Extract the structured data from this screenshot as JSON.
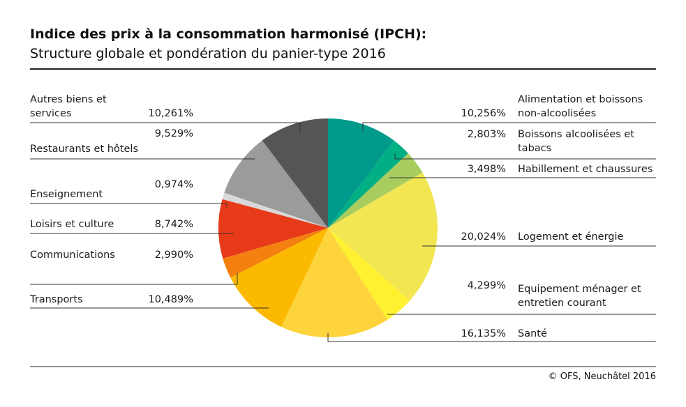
{
  "chart_data": {
    "type": "pie",
    "title": "Indice des prix à la consommation harmonisé (IPCH):",
    "subtitle": "Structure globale et pondération du panier-type 2016",
    "categories": [
      "Alimentation et boissons non-alcoolisées",
      "Boissons alcoolisées et tabacs",
      "Habillement et chaussures",
      "Logement et énergie",
      "Equipement ménager et entretien courant",
      "Santé",
      "Transports",
      "Communications",
      "Loisirs et culture",
      "Enseignement",
      "Restaurants et hôtels",
      "Autres biens et services"
    ],
    "values": [
      10.256,
      2.803,
      3.498,
      20.024,
      4.299,
      16.135,
      10.489,
      2.99,
      8.742,
      0.974,
      9.529,
      10.261
    ],
    "value_labels": [
      "10,256%",
      "2,803%",
      "3,498%",
      "20,024%",
      "4,299%",
      "16,135%",
      "10,489%",
      "2,990%",
      "8,742%",
      "0,974%",
      "9,529%",
      "10,261%"
    ],
    "colors": [
      "#009a8a",
      "#00b084",
      "#a9cc5e",
      "#f2e653",
      "#fff12f",
      "#fdd43c",
      "#fbb900",
      "#f3800f",
      "#e73a19",
      "#d9d9d9",
      "#9b9b9b",
      "#555555"
    ],
    "source": "© OFS, Neuchâtel 2016"
  }
}
